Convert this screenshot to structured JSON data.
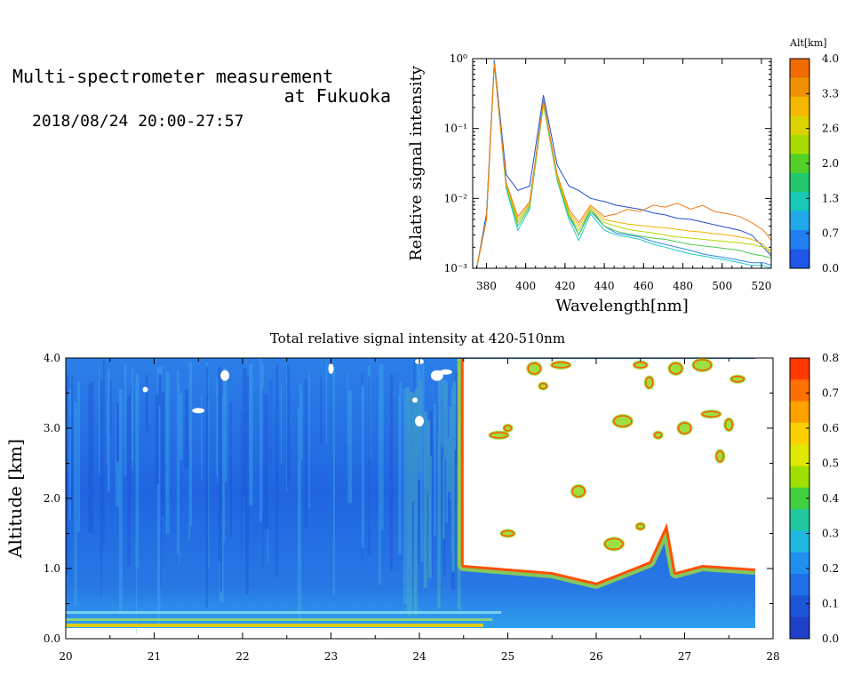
{
  "header": {
    "title_line1": "Multi-spectrometer measurement",
    "title_line2": "at Fukuoka",
    "datetime": "2018/08/24 20:00-27:57"
  },
  "chart_data": [
    {
      "type": "line",
      "xlabel": "Wavelength[nm]",
      "ylabel": "Relative signal intensity",
      "x_ticks": [
        "380",
        "400",
        "420",
        "440",
        "460",
        "480",
        "500",
        "520"
      ],
      "y_tick_labels": [
        "10⁰",
        "10⁻¹",
        "10⁻²",
        "10⁻³"
      ],
      "y_scale": "log",
      "xlim": [
        373,
        525
      ],
      "ylim": [
        0.001,
        1
      ],
      "x": [
        375,
        380,
        384,
        390,
        396,
        402,
        409,
        416,
        422,
        427,
        433,
        440,
        446,
        452,
        458,
        465,
        471,
        477,
        484,
        490,
        496,
        503,
        509,
        515,
        521,
        525
      ],
      "series": [
        {
          "alt": 0.0,
          "color": "#1f4fd8",
          "values": [
            0.001,
            0.006,
            0.95,
            0.022,
            0.013,
            0.015,
            0.3,
            0.03,
            0.015,
            0.013,
            0.01,
            0.009,
            0.008,
            0.0075,
            0.007,
            0.0062,
            0.0058,
            0.0052,
            0.005,
            0.0046,
            0.0042,
            0.0038,
            0.0035,
            0.003,
            0.002,
            0.0015
          ]
        },
        {
          "alt": 0.7,
          "color": "#2f86e8",
          "values": [
            0.001,
            0.005,
            0.9,
            0.016,
            0.0045,
            0.008,
            0.26,
            0.02,
            0.006,
            0.003,
            0.007,
            0.004,
            0.0032,
            0.003,
            0.0028,
            0.0024,
            0.0022,
            0.002,
            0.0018,
            0.0016,
            0.0015,
            0.0014,
            0.0013,
            0.0012,
            0.0012,
            0.0011
          ]
        },
        {
          "alt": 1.3,
          "color": "#22c9c9",
          "values": [
            0.001,
            0.005,
            0.85,
            0.014,
            0.0035,
            0.007,
            0.22,
            0.018,
            0.005,
            0.0025,
            0.006,
            0.0035,
            0.003,
            0.0028,
            0.0026,
            0.0022,
            0.002,
            0.0018,
            0.0016,
            0.0015,
            0.0014,
            0.0013,
            0.0012,
            0.0011,
            0.0011,
            0.001
          ]
        },
        {
          "alt": 1.9,
          "color": "#49c94c",
          "values": [
            0.001,
            0.005,
            0.85,
            0.015,
            0.004,
            0.0075,
            0.22,
            0.019,
            0.0055,
            0.003,
            0.0065,
            0.004,
            0.0034,
            0.0031,
            0.0029,
            0.0027,
            0.0026,
            0.0024,
            0.0022,
            0.0021,
            0.002,
            0.0019,
            0.0018,
            0.0016,
            0.0015,
            0.0014
          ]
        },
        {
          "alt": 2.6,
          "color": "#b5d900",
          "values": [
            0.001,
            0.005,
            0.85,
            0.016,
            0.0045,
            0.008,
            0.23,
            0.02,
            0.006,
            0.0035,
            0.007,
            0.0045,
            0.004,
            0.0036,
            0.0034,
            0.0032,
            0.003,
            0.0028,
            0.0027,
            0.0026,
            0.0025,
            0.0024,
            0.0023,
            0.0022,
            0.002,
            0.0018
          ]
        },
        {
          "alt": 3.3,
          "color": "#f0b400",
          "values": [
            0.001,
            0.005,
            0.85,
            0.016,
            0.005,
            0.0085,
            0.24,
            0.021,
            0.0065,
            0.004,
            0.0075,
            0.005,
            0.0046,
            0.0043,
            0.0041,
            0.0039,
            0.0038,
            0.0036,
            0.0034,
            0.0033,
            0.0031,
            0.003,
            0.0028,
            0.0026,
            0.0022,
            0.0016
          ]
        },
        {
          "alt": 4.0,
          "color": "#f07a1a",
          "values": [
            0.001,
            0.005,
            0.85,
            0.017,
            0.0055,
            0.009,
            0.25,
            0.022,
            0.007,
            0.0045,
            0.008,
            0.0055,
            0.006,
            0.007,
            0.0065,
            0.008,
            0.0075,
            0.0085,
            0.007,
            0.008,
            0.0065,
            0.006,
            0.0055,
            0.0045,
            0.0035,
            0.0025
          ]
        }
      ],
      "colorbar": {
        "label": "Alt[km]",
        "ticks": [
          "4.0",
          "3.3",
          "2.6",
          "2.0",
          "1.3",
          "0.7",
          "0.0"
        ],
        "colors": [
          "#f06a00",
          "#f09000",
          "#f5b800",
          "#dcd200",
          "#a8dc00",
          "#55d028",
          "#22c86c",
          "#18c8b8",
          "#20a8e8",
          "#2080f0",
          "#1f55e8"
        ]
      }
    },
    {
      "type": "heatmap",
      "title": "Total relative signal intensity at 420-510nm",
      "ylabel": "Altitude [km]",
      "x_ticks": [
        "20",
        "21",
        "22",
        "23",
        "24",
        "25",
        "26",
        "27",
        "28"
      ],
      "y_ticks": [
        "0.0",
        "1.0",
        "2.0",
        "3.0",
        "4.0"
      ],
      "xlim": [
        20,
        28
      ],
      "ylim": [
        0,
        4
      ],
      "x_hours": [
        20.0,
        24.5,
        24.5,
        25.0,
        25.5,
        26.0,
        26.3,
        26.6,
        26.8,
        26.9,
        27.2,
        27.8
      ],
      "cloud_base_km": [
        null,
        null,
        1.05,
        1.0,
        0.95,
        0.8,
        0.95,
        1.1,
        1.65,
        0.95,
        1.05,
        1.0
      ],
      "colorbar": {
        "ticks": [
          "0.8",
          "0.7",
          "0.6",
          "0.5",
          "0.4",
          "0.3",
          "0.2",
          "0.1",
          "0.0"
        ],
        "colors": [
          "#ff3a00",
          "#ff7000",
          "#ffa200",
          "#ffd000",
          "#e0e800",
          "#a0e000",
          "#40d040",
          "#20c8a0",
          "#20b8e0",
          "#2090f0",
          "#1f6fe8",
          "#1e55d8",
          "#1e40c8"
        ]
      }
    }
  ]
}
